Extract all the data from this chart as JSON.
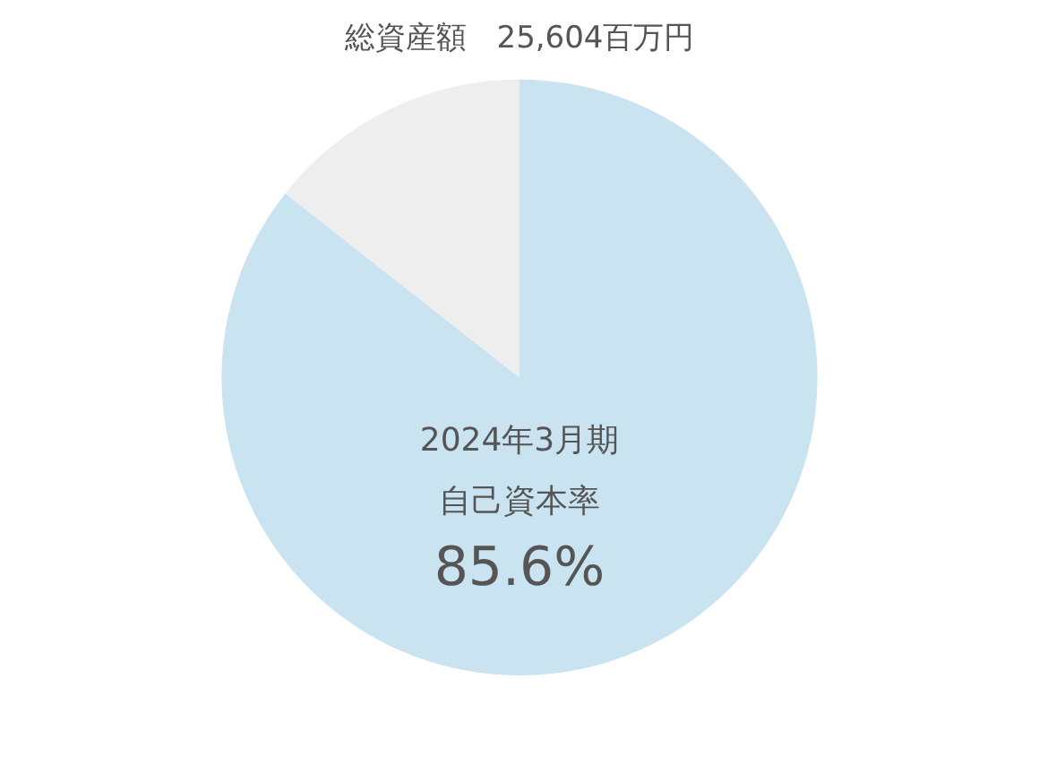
{
  "chart_data": {
    "type": "pie",
    "title": "総資産額　25,604百万円",
    "categories": [
      null,
      null
    ],
    "values": [
      85.6,
      14.4
    ],
    "colors": [
      "#c9e3f0",
      "#eeeeee"
    ],
    "value_labels": [
      "85.6%",
      null
    ],
    "annotations": [
      "2024年3月期",
      "自己資本率"
    ],
    "legend": false
  }
}
